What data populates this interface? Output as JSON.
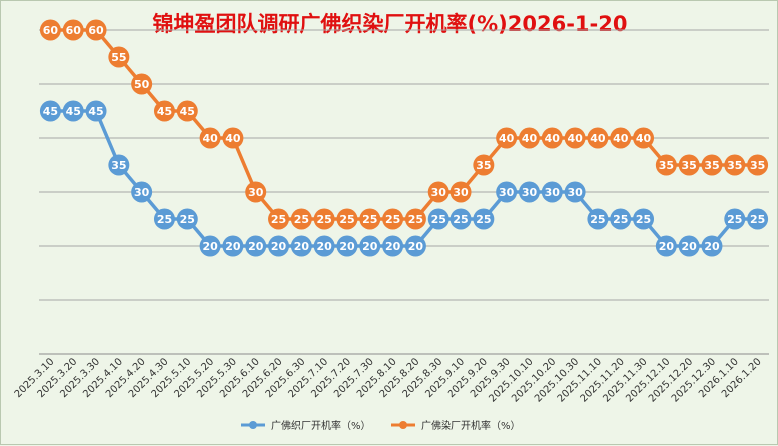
{
  "colors": {
    "weaving": "#5b9bd5",
    "dyeing": "#ed7d31",
    "grid": "#a6a6a6",
    "title": "#e01010"
  },
  "chart_data": {
    "type": "line",
    "title": "锦坤盈团队调研广佛织染厂开机率(%)2026-1-20",
    "xlabel": "",
    "ylabel": "",
    "ylim": [
      0,
      70
    ],
    "grid": true,
    "legend_position": "bottom",
    "categories": [
      "2025.3.10",
      "2025.3.20",
      "2025.3.30",
      "2025.4.10",
      "2025.4.20",
      "2025.4.30",
      "2025.5.10",
      "2025.5.20",
      "2025.5.30",
      "2025.6.10",
      "2025.6.20",
      "2025.6.30",
      "2025.7.10",
      "2025.7.20",
      "2025.7.30",
      "2025.8.10",
      "2025.8.20",
      "2025.8.30",
      "2025.9.10",
      "2025.9.20",
      "2025.9.30",
      "2025.10.10",
      "2025.10.20",
      "2025.10.30",
      "2025.11.10",
      "2025.11.20",
      "2025.11.30",
      "2025.12.10",
      "2025.12.20",
      "2025.12.30",
      "2026.1.10",
      "2026.1.20"
    ],
    "series": [
      {
        "name": "广佛织厂开机率（%）",
        "color": "#5b9bd5",
        "values": [
          45,
          45,
          45,
          35,
          30,
          25,
          25,
          20,
          20,
          20,
          20,
          20,
          20,
          20,
          20,
          20,
          20,
          25,
          25,
          25,
          30,
          30,
          30,
          30,
          25,
          25,
          25,
          20,
          20,
          20,
          25,
          25
        ]
      },
      {
        "name": "广佛染厂开机率（%）",
        "color": "#ed7d31",
        "values": [
          60,
          60,
          60,
          55,
          50,
          45,
          45,
          40,
          40,
          30,
          25,
          25,
          25,
          25,
          25,
          25,
          25,
          30,
          30,
          35,
          40,
          40,
          40,
          40,
          40,
          40,
          40,
          35,
          35,
          35,
          35,
          35
        ]
      }
    ]
  }
}
